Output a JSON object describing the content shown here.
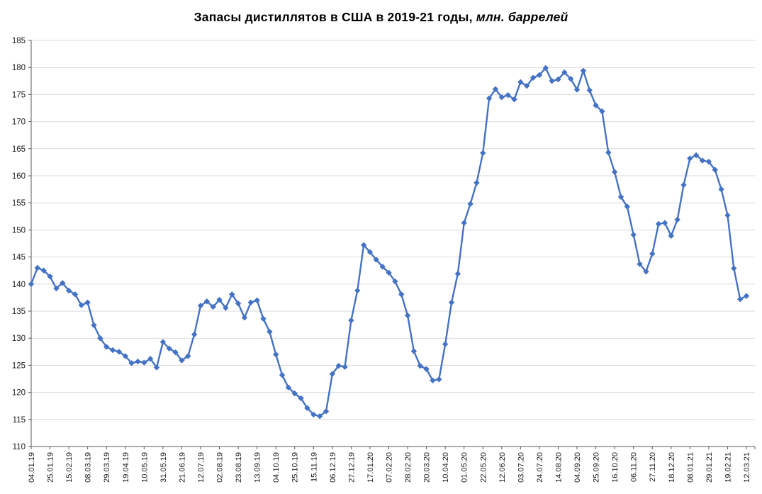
{
  "title": {
    "main": "Запасы дистиллятов в США в 2019-21 годы,",
    "suffix": " млн. баррелей"
  },
  "chart_data": {
    "type": "line",
    "series_name": "Запасы дистиллятов в США",
    "units": "млн. баррелей",
    "x_labels": [
      "04.01.19",
      "25.01.19",
      "15.02.19",
      "08.03.19",
      "29.03.19",
      "19.04.19",
      "10.05.19",
      "31.05.19",
      "21.06.19",
      "12.07.19",
      "02.08.19",
      "23.08.19",
      "13.09.19",
      "04.10.19",
      "25.10.19",
      "15.11.19",
      "06.12.19",
      "27.12.19",
      "17.01.20",
      "07.02.20",
      "28.02.20",
      "20.03.20",
      "10.04.20",
      "01.05.20",
      "22.05.20",
      "12.06.20",
      "03.07.20",
      "24.07.20",
      "14.08.20",
      "04.09.20",
      "25.09.20",
      "16.10.20",
      "06.11.20",
      "27.11.20",
      "18.12.20",
      "08.01.21",
      "29.01.21",
      "19.02.21",
      "12.03.21"
    ],
    "label_every": 3,
    "values": [
      140.0,
      143.0,
      142.5,
      141.4,
      139.2,
      140.2,
      138.8,
      138.1,
      136.1,
      136.6,
      132.4,
      130.0,
      128.4,
      127.8,
      127.5,
      126.7,
      125.4,
      125.7,
      125.5,
      126.2,
      124.6,
      129.3,
      128.1,
      127.4,
      125.9,
      126.7,
      130.7,
      136.0,
      136.8,
      135.8,
      137.1,
      135.6,
      138.1,
      136.4,
      133.8,
      136.6,
      137.0,
      133.6,
      131.2,
      127.0,
      123.2,
      120.9,
      119.8,
      118.9,
      117.1,
      115.9,
      115.6,
      116.5,
      123.4,
      124.9,
      124.7,
      133.3,
      138.8,
      147.2,
      145.9,
      144.5,
      143.2,
      142.1,
      140.5,
      138.1,
      134.2,
      127.6,
      124.9,
      124.3,
      122.2,
      122.4,
      128.9,
      136.6,
      141.9,
      151.3,
      154.8,
      158.7,
      164.2,
      174.3,
      176.0,
      174.5,
      174.9,
      174.1,
      177.3,
      176.6,
      178.1,
      178.6,
      179.9,
      177.5,
      177.8,
      179.1,
      177.9,
      175.9,
      179.4,
      175.8,
      173.0,
      171.9,
      164.3,
      160.7,
      156.1,
      154.3,
      149.1,
      143.7,
      142.3,
      145.6,
      151.1,
      151.3,
      148.9,
      151.9,
      158.3,
      163.2,
      163.8,
      162.8,
      162.6,
      161.1,
      157.5,
      152.7,
      142.9,
      137.2,
      137.8
    ],
    "ylim": [
      110,
      185
    ],
    "y_tick_step": 5,
    "y_tick_labels": [
      "110",
      "115",
      "120",
      "125",
      "130",
      "135",
      "140",
      "145",
      "150",
      "155",
      "160",
      "165",
      "170",
      "175",
      "180",
      "185"
    ],
    "grid": "horizontal",
    "legend_position": "none",
    "line_color": "#4472C4",
    "marker": "diamond",
    "gridline_color": "#D9D9D9",
    "axis_color": "#595959"
  }
}
